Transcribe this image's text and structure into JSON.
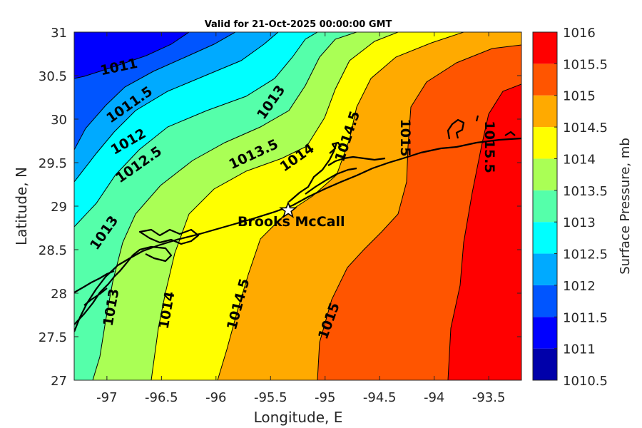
{
  "chart_data": {
    "type": "contour-map",
    "title": "Valid for 21-Oct-2025 00:00:00 GMT",
    "xlabel": "Longitude, E",
    "ylabel": "Latitude, N",
    "xlim": [
      -97.3,
      -93.2
    ],
    "ylim": [
      27,
      31
    ],
    "xticks": [
      -97,
      -96.5,
      -96,
      -95.5,
      -95,
      -94.5,
      -94,
      -93.5
    ],
    "xtick_labels": [
      "-97",
      "-96.5",
      "-96",
      "-95.5",
      "-95",
      "-94.5",
      "-94",
      "-93.5"
    ],
    "yticks": [
      27,
      27.5,
      28,
      28.5,
      29,
      29.5,
      30,
      30.5,
      31
    ],
    "ytick_labels": [
      "27",
      "27.5",
      "28",
      "28.5",
      "29",
      "29.5",
      "30",
      "30.5",
      "31"
    ],
    "colorbar": {
      "label": "Surface Pressure, mb",
      "levels": [
        1010.5,
        1011,
        1011.5,
        1012,
        1012.5,
        1013,
        1013.5,
        1014,
        1014.5,
        1015,
        1015.5,
        1016
      ],
      "tick_labels": [
        "1010.5",
        "1011",
        "1011.5",
        "1012",
        "1012.5",
        "1013",
        "1013.5",
        "1014",
        "1014.5",
        "1015",
        "1015.5",
        "1016"
      ],
      "colors": [
        "#0000aa",
        "#0000ff",
        "#0055ff",
        "#00aaff",
        "#00ffff",
        "#55ffaa",
        "#aaff55",
        "#ffff00",
        "#ffaa00",
        "#ff5500",
        "#ff0000"
      ]
    },
    "contour_labels": [
      "1011",
      "1011.5",
      "1012",
      "1012.5",
      "1013",
      "1013",
      "1013",
      "1013.5",
      "1014",
      "1014",
      "1014.5",
      "1014.5",
      "1015",
      "1015",
      "1015.5"
    ],
    "station": {
      "name": "Brooks McCall",
      "lon": -95.3,
      "lat": 28.95,
      "marker": "star-icon"
    }
  }
}
